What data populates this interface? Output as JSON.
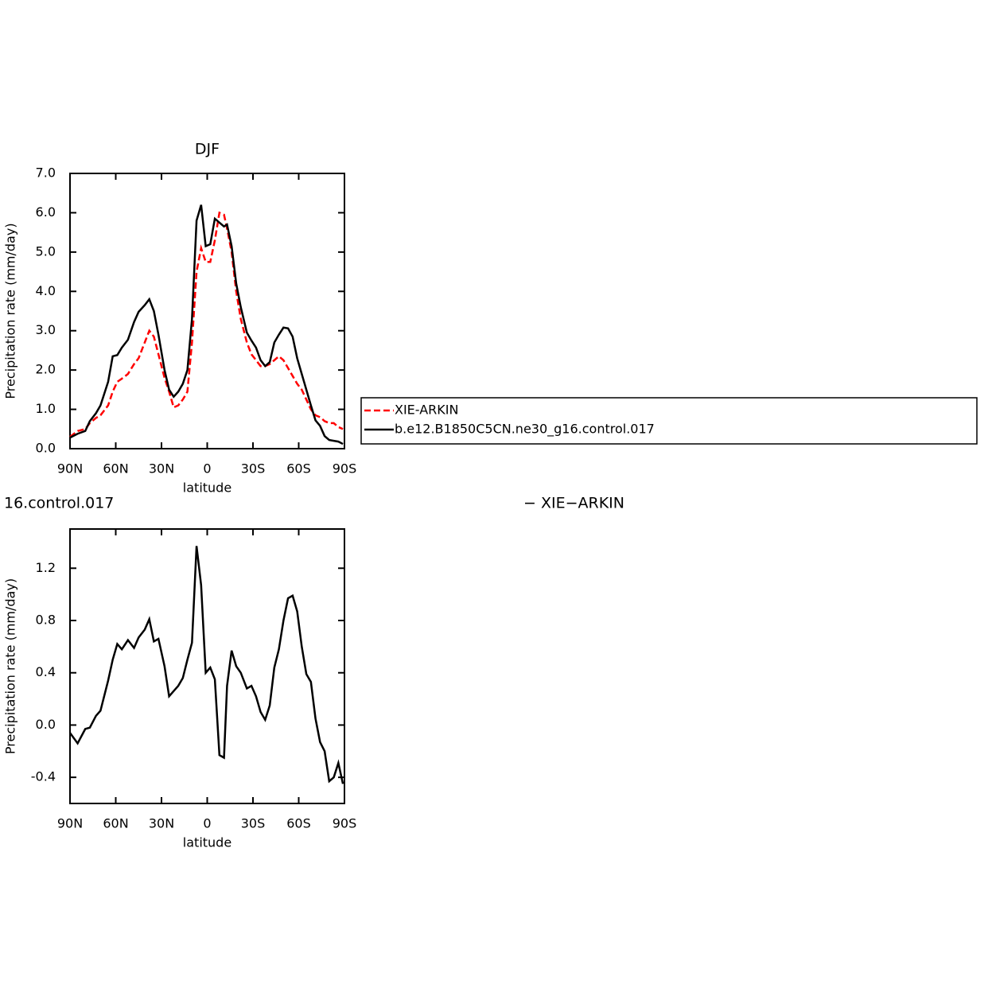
{
  "chart_data": [
    {
      "type": "line",
      "title": "DJF",
      "ylabel": "Precipitation rate (mm/day)",
      "xlabel": "latitude",
      "x": [
        90,
        85,
        80,
        77,
        73,
        70,
        65,
        62,
        59,
        56,
        52,
        48,
        45,
        41,
        38,
        35,
        32,
        28,
        25,
        22,
        19,
        16,
        13,
        10,
        7,
        4,
        1,
        -2,
        -5,
        -8,
        -11,
        -13,
        -16,
        -19,
        -22,
        -26,
        -29,
        -32,
        -35,
        -38,
        -41,
        -44,
        -47,
        -50,
        -53,
        -56,
        -59,
        -62,
        -65,
        -68,
        -71,
        -74,
        -77,
        -80,
        -83,
        -86,
        -89
      ],
      "xlim": [
        90,
        -90
      ],
      "xticks": [
        {
          "value": 90,
          "label": "90N"
        },
        {
          "value": 60,
          "label": "60N"
        },
        {
          "value": 30,
          "label": "30N"
        },
        0,
        {
          "value": -30,
          "label": "30S"
        },
        {
          "value": -60,
          "label": "60S"
        },
        {
          "value": -90,
          "label": "90S"
        }
      ],
      "ylim": [
        0,
        7
      ],
      "yticks": [
        {
          "value": 0,
          "label": "0.0"
        },
        {
          "value": 1,
          "label": "1.0"
        },
        {
          "value": 2,
          "label": "2.0"
        },
        {
          "value": 3,
          "label": "3.0"
        },
        {
          "value": 4,
          "label": "4.0"
        },
        {
          "value": 5,
          "label": "5.0"
        },
        {
          "value": 6,
          "label": "6.0"
        },
        {
          "value": 7,
          "label": "7.0"
        }
      ],
      "legend": "right",
      "series": [
        {
          "name": "XIE-ARKIN",
          "color": "#ff0000",
          "style": "dashed",
          "values": [
            0.3,
            0.45,
            0.5,
            0.65,
            0.78,
            0.85,
            1.1,
            1.45,
            1.7,
            1.78,
            1.9,
            2.15,
            2.3,
            2.7,
            3.0,
            2.85,
            2.4,
            1.8,
            1.45,
            1.05,
            1.1,
            1.25,
            1.45,
            2.7,
            4.5,
            5.1,
            4.75,
            4.75,
            5.3,
            6.0,
            5.95,
            5.6,
            5.0,
            4.0,
            3.3,
            2.7,
            2.4,
            2.25,
            2.1,
            2.1,
            2.15,
            2.25,
            2.35,
            2.25,
            2.05,
            1.85,
            1.65,
            1.5,
            1.25,
            1.0,
            0.85,
            0.8,
            0.7,
            0.65,
            0.65,
            0.55,
            0.5
          ]
        },
        {
          "name": "b.e12.B1850C5CN.ne30_g16.control.017",
          "color": "#000000",
          "style": "solid",
          "values": [
            0.28,
            0.38,
            0.45,
            0.7,
            0.9,
            1.1,
            1.7,
            2.35,
            2.38,
            2.57,
            2.77,
            3.22,
            3.48,
            3.65,
            3.8,
            3.5,
            2.9,
            2.0,
            1.5,
            1.32,
            1.45,
            1.65,
            2.0,
            3.3,
            5.8,
            6.2,
            5.15,
            5.2,
            5.85,
            5.75,
            5.65,
            5.7,
            5.15,
            4.2,
            3.6,
            2.95,
            2.75,
            2.57,
            2.25,
            2.1,
            2.2,
            2.7,
            2.9,
            3.08,
            3.06,
            2.85,
            2.3,
            1.9,
            1.5,
            1.1,
            0.72,
            0.58,
            0.32,
            0.22,
            0.2,
            0.18,
            0.12
          ]
        }
      ]
    },
    {
      "type": "line",
      "title_parts": [
        "16.control.017",
        "− XIE−ARKIN"
      ],
      "ylabel": "Precipitation rate (mm/day)",
      "xlabel": "latitude",
      "x": [
        90,
        85,
        80,
        77,
        73,
        70,
        65,
        62,
        59,
        56,
        52,
        48,
        45,
        41,
        38,
        35,
        32,
        28,
        25,
        22,
        19,
        16,
        13,
        10,
        7,
        4,
        1,
        -2,
        -5,
        -8,
        -11,
        -13,
        -16,
        -19,
        -22,
        -26,
        -29,
        -32,
        -35,
        -38,
        -41,
        -44,
        -47,
        -50,
        -53,
        -56,
        -59,
        -62,
        -65,
        -68,
        -71,
        -74,
        -77,
        -80,
        -83,
        -86,
        -89
      ],
      "xlim": [
        90,
        -90
      ],
      "xticks": [
        {
          "value": 90,
          "label": "90N"
        },
        {
          "value": 60,
          "label": "60N"
        },
        {
          "value": 30,
          "label": "30N"
        },
        0,
        {
          "value": -30,
          "label": "30S"
        },
        {
          "value": -60,
          "label": "60S"
        },
        {
          "value": -90,
          "label": "90S"
        }
      ],
      "ylim": [
        -0.6,
        1.5
      ],
      "yticks": [
        -0.4,
        {
          "value": 0,
          "label": "0.0"
        },
        0.4,
        0.8,
        1.2
      ],
      "series": [
        {
          "color": "#000000",
          "style": "solid",
          "values": [
            -0.06,
            -0.14,
            -0.03,
            -0.02,
            0.07,
            0.11,
            0.34,
            0.5,
            0.62,
            0.58,
            0.65,
            0.59,
            0.67,
            0.73,
            0.81,
            0.64,
            0.66,
            0.45,
            0.22,
            0.26,
            0.3,
            0.36,
            0.5,
            0.63,
            1.37,
            1.07,
            0.4,
            0.44,
            0.35,
            -0.23,
            -0.25,
            0.3,
            0.57,
            0.45,
            0.4,
            0.28,
            0.3,
            0.22,
            0.1,
            0.04,
            0.15,
            0.44,
            0.58,
            0.8,
            0.97,
            0.99,
            0.87,
            0.6,
            0.39,
            0.33,
            0.05,
            -0.13,
            -0.2,
            -0.43,
            -0.4,
            -0.29,
            -0.45
          ]
        }
      ]
    }
  ]
}
